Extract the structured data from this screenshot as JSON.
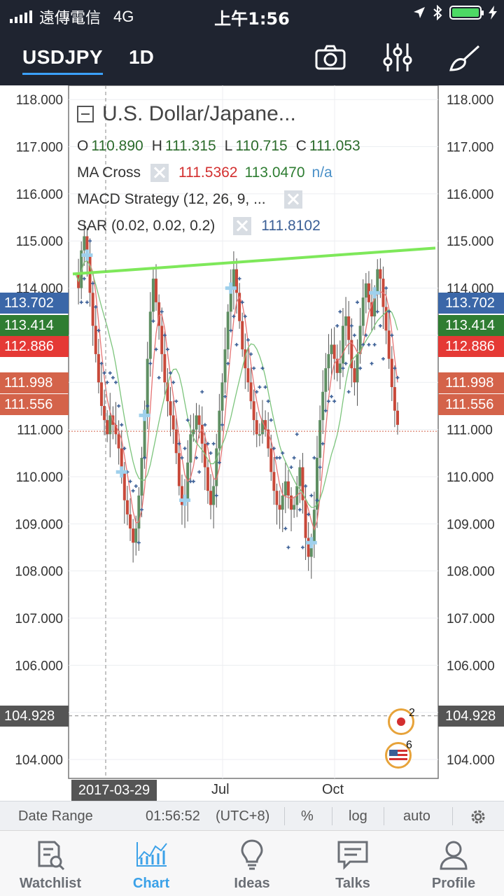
{
  "status_bar": {
    "carrier": "遠傳電信",
    "network": "4G",
    "time": "上午1:56"
  },
  "header": {
    "symbol": "USDJPY",
    "interval": "1D"
  },
  "legend": {
    "title": "U.S. Dollar/Japane...",
    "ohlc": {
      "o_label": "O",
      "o": "110.890",
      "h_label": "H",
      "h": "111.315",
      "l_label": "L",
      "l": "110.715",
      "c_label": "C",
      "c": "111.053"
    },
    "ma_cross": {
      "label": "MA Cross",
      "v1": "111.5362",
      "v2": "113.0470",
      "v3": "n/a"
    },
    "macd": {
      "label": "MACD Strategy (12, 26, 9, ..."
    },
    "sar": {
      "label": "SAR (0.02, 0.02, 0.2)",
      "value": "111.8102"
    }
  },
  "price_tags": [
    {
      "value": "113.702",
      "color": "#3b67a8"
    },
    {
      "value": "113.414",
      "color": "#2f7d32"
    },
    {
      "value": "112.886",
      "color": "#e53935"
    },
    {
      "value": "111.998",
      "color": "#d4634a"
    },
    {
      "value": "111.556",
      "color": "#d4634a"
    },
    {
      "value": "104.928",
      "color": "#555555"
    }
  ],
  "x_axis": {
    "date_tag": "2017-03-29",
    "ticks": [
      "Jul",
      "Oct"
    ]
  },
  "badges": {
    "japan": "2",
    "usa": "6"
  },
  "toolbar": {
    "date_range": "Date Range",
    "clock": "01:56:52",
    "tz": "(UTC+8)",
    "percent": "%",
    "log": "log",
    "auto": "auto"
  },
  "tabs": [
    {
      "label": "Watchlist",
      "icon": "watchlist-icon"
    },
    {
      "label": "Chart",
      "icon": "chart-icon"
    },
    {
      "label": "Ideas",
      "icon": "ideas-bulb-icon"
    },
    {
      "label": "Talks",
      "icon": "talks-icon"
    },
    {
      "label": "Profile",
      "icon": "profile-icon"
    }
  ],
  "colors": {
    "accent": "#3ba1e8",
    "header_bg": "#1f2430",
    "up": "#5f8f63",
    "down": "#c8493a",
    "trendline": "#7ee85a",
    "sar": "#3b5f96"
  },
  "chart_data": {
    "type": "candlestick",
    "symbol": "USDJPY",
    "interval": "1D",
    "y_ticks": [
      118,
      117,
      116,
      115,
      114,
      113,
      111,
      110,
      109,
      108,
      107,
      106,
      104
    ],
    "ylim": [
      103.6,
      118.3
    ],
    "x_ticks": [
      "Jul",
      "Oct"
    ],
    "crosshair_date": "2017-03-29",
    "crosshair_price": 104.928,
    "last_close": 111.053,
    "ohlc_last": {
      "open": 110.89,
      "high": 111.315,
      "low": 110.715,
      "close": 111.053
    },
    "close_path": [
      114.3,
      114.0,
      114.8,
      115.1,
      114.7,
      113.9,
      113.2,
      112.6,
      112.0,
      111.5,
      111.2,
      110.9,
      111.3,
      111.1,
      110.9,
      110.6,
      110.1,
      109.5,
      109.2,
      108.9,
      108.6,
      108.9,
      109.6,
      110.4,
      111.3,
      112.5,
      113.5,
      114.2,
      113.7,
      113.2,
      112.6,
      112.0,
      111.6,
      111.3,
      111.0,
      110.5,
      109.8,
      109.4,
      109.5,
      110.3,
      110.9,
      111.0,
      111.3,
      111.1,
      110.7,
      110.2,
      109.7,
      109.4,
      109.8,
      110.6,
      111.4,
      112.0,
      112.7,
      113.5,
      114.0,
      114.4,
      113.9,
      113.3,
      112.7,
      112.3,
      112.0,
      111.6,
      111.2,
      110.9,
      110.9,
      111.2,
      111.0,
      110.6,
      110.1,
      109.7,
      109.4,
      109.3,
      109.6,
      109.9,
      109.6,
      109.3,
      109.4,
      109.8,
      110.2,
      109.5,
      108.7,
      108.3,
      108.6,
      109.3,
      110.4,
      111.2,
      111.8,
      112.3,
      112.6,
      112.8,
      112.5,
      112.2,
      112.4,
      113.2,
      113.4,
      112.9,
      112.3,
      112.0,
      112.6,
      113.2,
      113.8,
      114.1,
      113.7,
      113.4,
      113.9,
      114.4,
      114.2,
      113.6,
      113.1,
      112.5,
      111.9,
      111.4,
      111.1
    ],
    "trendline": {
      "from_price": 114.3,
      "to_price": 114.85,
      "color": "#7ee85a"
    },
    "indicators": {
      "ma_cross": [
        111.5362,
        113.047
      ],
      "sar": {
        "params": "(0.02, 0.02, 0.2)",
        "value": 111.8102
      }
    }
  }
}
